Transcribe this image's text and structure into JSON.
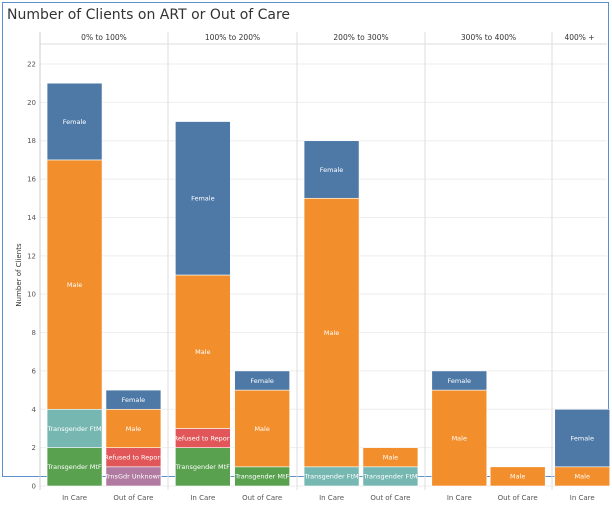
{
  "title": "Number of Clients on ART or Out of Care",
  "chart_data": {
    "type": "bar",
    "stacked": true,
    "title": "Number of Clients on ART or Out of Care",
    "ylabel": "Number of Clients",
    "ylim": [
      0,
      23
    ],
    "yticks": [
      0,
      2,
      4,
      6,
      8,
      10,
      12,
      14,
      16,
      18,
      20,
      22
    ],
    "grid": true,
    "colors": {
      "Transgender MtF": "#59a14f",
      "Transgender FtM": "#76b7b2",
      "Refused to Report": "#e15759",
      "TrnsGdr Unknown": "#b07aa1",
      "Male": "#f28e2b",
      "Female": "#4e79a7"
    },
    "panels": [
      {
        "label": "0% to 100%",
        "bars": [
          {
            "category": "In Care",
            "segments": [
              {
                "name": "Transgender MtF",
                "value": 2
              },
              {
                "name": "Transgender FtM",
                "value": 2
              },
              {
                "name": "Male",
                "value": 13
              },
              {
                "name": "Female",
                "value": 4
              }
            ]
          },
          {
            "category": "Out of Care",
            "segments": [
              {
                "name": "TrnsGdr Unknown",
                "value": 1
              },
              {
                "name": "Refused to Report",
                "value": 1
              },
              {
                "name": "Male",
                "value": 2
              },
              {
                "name": "Female",
                "value": 1
              }
            ]
          }
        ]
      },
      {
        "label": "100% to 200%",
        "bars": [
          {
            "category": "In Care",
            "segments": [
              {
                "name": "Transgender MtF",
                "value": 2
              },
              {
                "name": "Refused to Report",
                "value": 1
              },
              {
                "name": "Male",
                "value": 8
              },
              {
                "name": "Female",
                "value": 8
              }
            ]
          },
          {
            "category": "Out of Care",
            "segments": [
              {
                "name": "Transgender MtF",
                "value": 1
              },
              {
                "name": "Male",
                "value": 4
              },
              {
                "name": "Female",
                "value": 1
              }
            ]
          }
        ]
      },
      {
        "label": "200% to 300%",
        "bars": [
          {
            "category": "In Care",
            "segments": [
              {
                "name": "Transgender FtM",
                "value": 1
              },
              {
                "name": "Male",
                "value": 14
              },
              {
                "name": "Female",
                "value": 3
              }
            ]
          },
          {
            "category": "Out of Care",
            "segments": [
              {
                "name": "Transgender FtM",
                "value": 1
              },
              {
                "name": "Male",
                "value": 1
              }
            ]
          }
        ]
      },
      {
        "label": "300% to 400%",
        "bars": [
          {
            "category": "In Care",
            "segments": [
              {
                "name": "Male",
                "value": 5
              },
              {
                "name": "Female",
                "value": 1
              }
            ]
          },
          {
            "category": "Out of Care",
            "segments": [
              {
                "name": "Male",
                "value": 1
              }
            ]
          }
        ]
      },
      {
        "label": "400% +",
        "bars": [
          {
            "category": "In Care",
            "segments": [
              {
                "name": "Male",
                "value": 1
              },
              {
                "name": "Female",
                "value": 3
              }
            ]
          }
        ]
      }
    ]
  }
}
